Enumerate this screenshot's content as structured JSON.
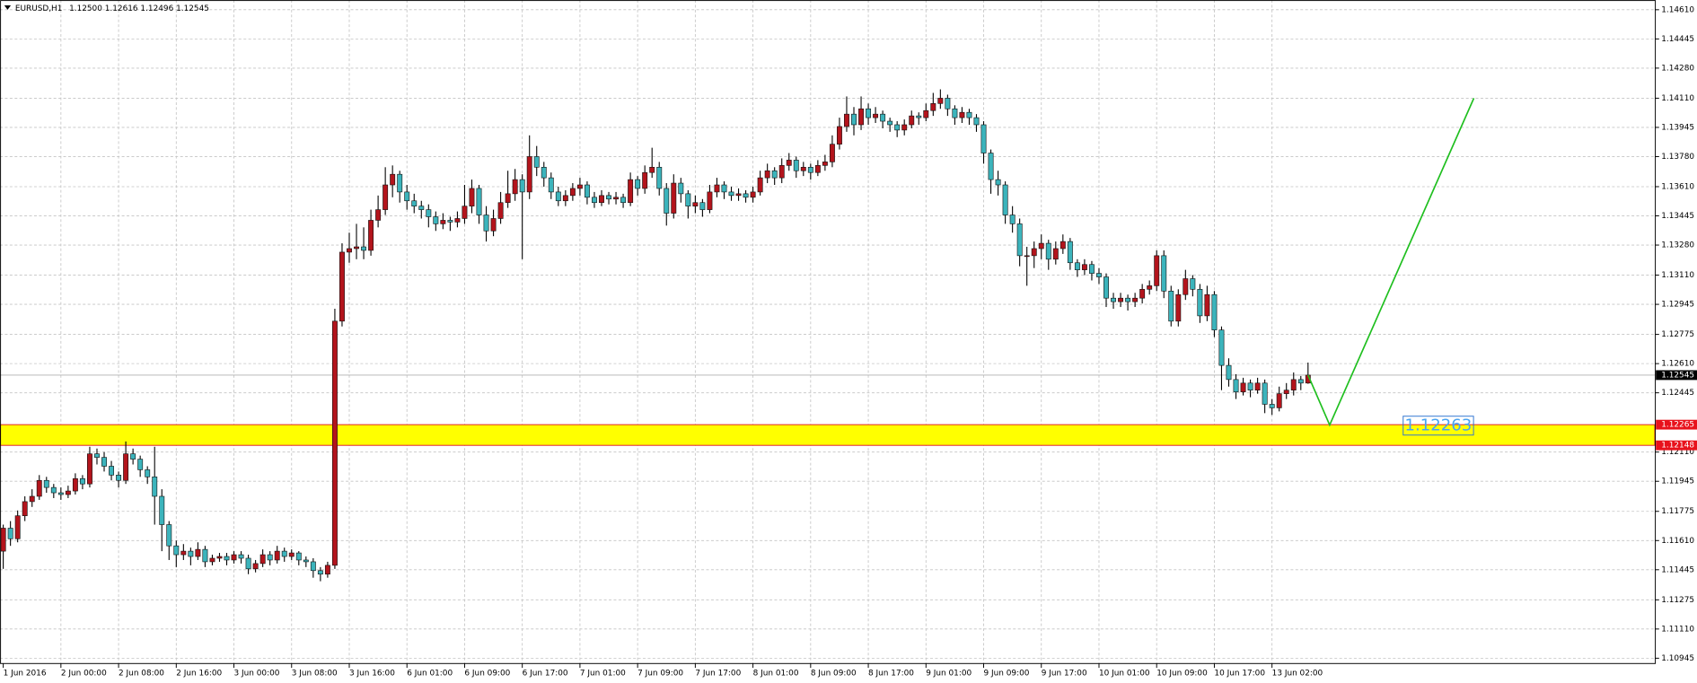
{
  "chart_data": {
    "type": "candlestick",
    "title": "EURUSD,H1",
    "ohlc_labels": [
      "1.12500",
      "1.12616",
      "1.12496",
      "1.12545"
    ],
    "up_color": "#b3141c",
    "down_color": "#3cb4bc",
    "grid": true,
    "xlim": [
      -0.45,
      229.1
    ],
    "ylim": [
      1.10915,
      1.14665
    ],
    "xticks": [
      {
        "value": 0,
        "label": "1 Jun 2016"
      },
      {
        "value": 8,
        "label": "2 Jun 00:00"
      },
      {
        "value": 16,
        "label": "2 Jun 08:00"
      },
      {
        "value": 24,
        "label": "2 Jun 16:00"
      },
      {
        "value": 32,
        "label": "3 Jun 00:00"
      },
      {
        "value": 40,
        "label": "3 Jun 08:00"
      },
      {
        "value": 48,
        "label": "3 Jun 16:00"
      },
      {
        "value": 56,
        "label": "6 Jun 01:00"
      },
      {
        "value": 64,
        "label": "6 Jun 09:00"
      },
      {
        "value": 72,
        "label": "6 Jun 17:00"
      },
      {
        "value": 80,
        "label": "7 Jun 01:00"
      },
      {
        "value": 88,
        "label": "7 Jun 09:00"
      },
      {
        "value": 96,
        "label": "7 Jun 17:00"
      },
      {
        "value": 104,
        "label": "8 Jun 01:00"
      },
      {
        "value": 112,
        "label": "8 Jun 09:00"
      },
      {
        "value": 120,
        "label": "8 Jun 17:00"
      },
      {
        "value": 128,
        "label": "9 Jun 01:00"
      },
      {
        "value": 136,
        "label": "9 Jun 09:00"
      },
      {
        "value": 144,
        "label": "9 Jun 17:00"
      },
      {
        "value": 152,
        "label": "10 Jun 01:00"
      },
      {
        "value": 160,
        "label": "10 Jun 09:00"
      },
      {
        "value": 168,
        "label": "10 Jun 17:00"
      },
      {
        "value": 176,
        "label": "13 Jun 02:00"
      }
    ],
    "yticks": [
      {
        "value": 1.1461,
        "label": "1.14610"
      },
      {
        "value": 1.14445,
        "label": "1.14445"
      },
      {
        "value": 1.1428,
        "label": "1.14280"
      },
      {
        "value": 1.1411,
        "label": "1.14110"
      },
      {
        "value": 1.13945,
        "label": "1.13945"
      },
      {
        "value": 1.1378,
        "label": "1.13780"
      },
      {
        "value": 1.1361,
        "label": "1.13610"
      },
      {
        "value": 1.13445,
        "label": "1.13445"
      },
      {
        "value": 1.1328,
        "label": "1.13280"
      },
      {
        "value": 1.1311,
        "label": "1.13110"
      },
      {
        "value": 1.12945,
        "label": "1.12945"
      },
      {
        "value": 1.12775,
        "label": "1.12775"
      },
      {
        "value": 1.1261,
        "label": "1.12610"
      },
      {
        "value": 1.12445,
        "label": "1.12445"
      },
      {
        "value": 1.1211,
        "label": "1.12110"
      },
      {
        "value": 1.11945,
        "label": "1.11945"
      },
      {
        "value": 1.11775,
        "label": "1.11775"
      },
      {
        "value": 1.1161,
        "label": "1.11610"
      },
      {
        "value": 1.11445,
        "label": "1.11445"
      },
      {
        "value": 1.11275,
        "label": "1.11275"
      },
      {
        "value": 1.1111,
        "label": "1.11110"
      },
      {
        "value": 1.10945,
        "label": "1.10945"
      }
    ],
    "open": [
      1.1155,
      1.1168,
      1.1162,
      1.1175,
      1.1183,
      1.1186,
      1.1195,
      1.1191,
      1.1188,
      1.1187,
      1.1189,
      1.1196,
      1.1193,
      1.121,
      1.1208,
      1.1203,
      1.1198,
      1.1195,
      1.121,
      1.1207,
      1.1201,
      1.1197,
      1.1186,
      1.117,
      1.1158,
      1.1153,
      1.1155,
      1.1152,
      1.1156,
      1.1149,
      1.1151,
      1.1152,
      1.115,
      1.1153,
      1.1151,
      1.1145,
      1.1148,
      1.1153,
      1.115,
      1.1155,
      1.1152,
      1.1154,
      1.115,
      1.1149,
      1.1144,
      1.1142,
      1.1147,
      1.1285,
      1.1324,
      1.1326,
      1.1327,
      1.1325,
      1.1342,
      1.1348,
      1.1362,
      1.1368,
      1.1358,
      1.1353,
      1.135,
      1.1348,
      1.1344,
      1.134,
      1.1342,
      1.1341,
      1.1343,
      1.135,
      1.136,
      1.1345,
      1.1336,
      1.1343,
      1.1352,
      1.1357,
      1.1365,
      1.1358,
      1.1378,
      1.1372,
      1.1366,
      1.1358,
      1.1353,
      1.1356,
      1.136,
      1.1362,
      1.1355,
      1.1352,
      1.1356,
      1.1354,
      1.1355,
      1.1352,
      1.1365,
      1.136,
      1.1369,
      1.1372,
      1.136,
      1.1346,
      1.1363,
      1.1357,
      1.135,
      1.1352,
      1.1348,
      1.1358,
      1.1362,
      1.1358,
      1.1356,
      1.1357,
      1.1355,
      1.1358,
      1.1366,
      1.137,
      1.1366,
      1.1373,
      1.1376,
      1.137,
      1.1372,
      1.1369,
      1.1373,
      1.1375,
      1.1385,
      1.1395,
      1.1402,
      1.1396,
      1.1405,
      1.14,
      1.1402,
      1.1398,
      1.1396,
      1.1393,
      1.1396,
      1.1401,
      1.14,
      1.1404,
      1.1408,
      1.1411,
      1.1405,
      1.14,
      1.1403,
      1.14,
      1.1396,
      1.138,
      1.1365,
      1.1362,
      1.1345,
      1.134,
      1.1322,
      1.1322,
      1.1326,
      1.1329,
      1.132,
      1.1326,
      1.133,
      1.1318,
      1.1314,
      1.1317,
      1.1312,
      1.131,
      1.1298,
      1.1296,
      1.1298,
      1.1296,
      1.1298,
      1.1303,
      1.1305,
      1.1322,
      1.1302,
      1.1285,
      1.13,
      1.1309,
      1.1303,
      1.1288,
      1.13,
      1.128,
      1.126,
      1.1252,
      1.1245,
      1.125,
      1.1246,
      1.125,
      1.1238,
      1.1236,
      1.1244,
      1.1246,
      1.1252,
      1.125
    ],
    "high": [
      1.117,
      1.1172,
      1.1178,
      1.1186,
      1.119,
      1.1198,
      1.1197,
      1.1193,
      1.1191,
      1.1192,
      1.1199,
      1.1198,
      1.1214,
      1.1213,
      1.1211,
      1.1206,
      1.12,
      1.1217,
      1.1213,
      1.1209,
      1.1203,
      1.1214,
      1.119,
      1.1172,
      1.1161,
      1.1159,
      1.1157,
      1.116,
      1.1158,
      1.1153,
      1.1154,
      1.1154,
      1.1155,
      1.1155,
      1.1153,
      1.115,
      1.1156,
      1.1155,
      1.1158,
      1.1157,
      1.1156,
      1.1155,
      1.1152,
      1.1151,
      1.1146,
      1.1149,
      1.1292,
      1.1329,
      1.1335,
      1.134,
      1.1338,
      1.1348,
      1.1356,
      1.1372,
      1.1373,
      1.137,
      1.1362,
      1.1357,
      1.1353,
      1.1351,
      1.1347,
      1.1346,
      1.1344,
      1.1347,
      1.1362,
      1.1365,
      1.1362,
      1.135,
      1.1348,
      1.1358,
      1.137,
      1.1371,
      1.1368,
      1.139,
      1.1384,
      1.1375,
      1.1369,
      1.1361,
      1.1359,
      1.1363,
      1.1366,
      1.1364,
      1.1358,
      1.1359,
      1.1358,
      1.1358,
      1.1357,
      1.1369,
      1.1367,
      1.1373,
      1.1383,
      1.1375,
      1.1363,
      1.1368,
      1.1366,
      1.1359,
      1.1356,
      1.1354,
      1.1362,
      1.1366,
      1.1364,
      1.1361,
      1.136,
      1.1359,
      1.1361,
      1.137,
      1.1374,
      1.1372,
      1.1377,
      1.138,
      1.1378,
      1.1375,
      1.1374,
      1.1376,
      1.1379,
      1.139,
      1.14,
      1.1412,
      1.1406,
      1.1412,
      1.1408,
      1.1406,
      1.1404,
      1.14,
      1.1398,
      1.1399,
      1.1404,
      1.1403,
      1.1408,
      1.1414,
      1.1416,
      1.1413,
      1.1407,
      1.1406,
      1.1405,
      1.1402,
      1.1398,
      1.1382,
      1.137,
      1.1364,
      1.135,
      1.1343,
      1.1327,
      1.133,
      1.1334,
      1.1331,
      1.133,
      1.1334,
      1.1332,
      1.132,
      1.132,
      1.1319,
      1.1315,
      1.1312,
      1.1301,
      1.1301,
      1.13,
      1.1301,
      1.1306,
      1.1308,
      1.1325,
      1.1325,
      1.1305,
      1.1303,
      1.1314,
      1.1311,
      1.1306,
      1.1305,
      1.1302,
      1.1282,
      1.1264,
      1.1255,
      1.1253,
      1.1252,
      1.1253,
      1.1252,
      1.1241,
      1.1248,
      1.125,
      1.1256,
      1.1254,
      1.12616
    ],
    "low": [
      1.1145,
      1.1158,
      1.116,
      1.1172,
      1.118,
      1.1184,
      1.1188,
      1.1185,
      1.1184,
      1.1185,
      1.1187,
      1.119,
      1.1191,
      1.1204,
      1.12,
      1.1195,
      1.1191,
      1.1193,
      1.1204,
      1.1197,
      1.1193,
      1.117,
      1.1155,
      1.115,
      1.1146,
      1.115,
      1.1147,
      1.115,
      1.1146,
      1.1147,
      1.1149,
      1.1147,
      1.1148,
      1.1148,
      1.1142,
      1.1143,
      1.1146,
      1.1147,
      1.1148,
      1.1149,
      1.115,
      1.1147,
      1.1146,
      1.114,
      1.1138,
      1.114,
      1.1145,
      1.1282,
      1.1318,
      1.132,
      1.132,
      1.1322,
      1.1338,
      1.1345,
      1.1355,
      1.1352,
      1.1348,
      1.1346,
      1.1343,
      1.1338,
      1.1336,
      1.1337,
      1.1336,
      1.1338,
      1.134,
      1.1346,
      1.134,
      1.133,
      1.1333,
      1.134,
      1.1349,
      1.1353,
      1.132,
      1.1354,
      1.1367,
      1.1361,
      1.1354,
      1.135,
      1.135,
      1.1353,
      1.1356,
      1.1351,
      1.1349,
      1.135,
      1.1351,
      1.1351,
      1.1349,
      1.135,
      1.1356,
      1.1357,
      1.1366,
      1.1356,
      1.1339,
      1.1343,
      1.1352,
      1.1343,
      1.1346,
      1.1344,
      1.1346,
      1.1355,
      1.1354,
      1.1353,
      1.1353,
      1.1352,
      1.1352,
      1.1356,
      1.1363,
      1.1362,
      1.1363,
      1.137,
      1.1366,
      1.1367,
      1.1365,
      1.1367,
      1.137,
      1.1372,
      1.1382,
      1.1392,
      1.139,
      1.1393,
      1.1396,
      1.1397,
      1.1394,
      1.1392,
      1.1389,
      1.139,
      1.1394,
      1.1396,
      1.1398,
      1.1401,
      1.1405,
      1.1401,
      1.1396,
      1.1397,
      1.1396,
      1.1392,
      1.1374,
      1.1357,
      1.1356,
      1.134,
      1.1335,
      1.1316,
      1.1305,
      1.1315,
      1.132,
      1.1314,
      1.1317,
      1.1323,
      1.1314,
      1.131,
      1.1311,
      1.1308,
      1.1306,
      1.1293,
      1.1292,
      1.1293,
      1.1291,
      1.1293,
      1.1295,
      1.13,
      1.1302,
      1.1298,
      1.1282,
      1.1282,
      1.1297,
      1.1299,
      1.1284,
      1.1285,
      1.1276,
      1.1246,
      1.1248,
      1.1241,
      1.1243,
      1.1242,
      1.1244,
      1.1233,
      1.1232,
      1.1234,
      1.1241,
      1.1243,
      1.1246,
      1.12496
    ],
    "close": [
      1.1168,
      1.1162,
      1.1175,
      1.1183,
      1.1186,
      1.1195,
      1.1191,
      1.1188,
      1.1187,
      1.1189,
      1.1196,
      1.1193,
      1.121,
      1.1208,
      1.1203,
      1.1198,
      1.1195,
      1.121,
      1.1207,
      1.1201,
      1.1197,
      1.1186,
      1.117,
      1.1158,
      1.1153,
      1.1155,
      1.1152,
      1.1156,
      1.1149,
      1.1151,
      1.1152,
      1.115,
      1.1153,
      1.1151,
      1.1145,
      1.1148,
      1.1153,
      1.115,
      1.1155,
      1.1152,
      1.1154,
      1.115,
      1.1149,
      1.1144,
      1.1142,
      1.1147,
      1.1285,
      1.1324,
      1.1326,
      1.1327,
      1.1325,
      1.1342,
      1.1348,
      1.1362,
      1.1368,
      1.1358,
      1.1353,
      1.135,
      1.1348,
      1.1344,
      1.134,
      1.1342,
      1.1341,
      1.1343,
      1.135,
      1.136,
      1.1345,
      1.1336,
      1.1343,
      1.1352,
      1.1357,
      1.1365,
      1.1358,
      1.1378,
      1.1372,
      1.1366,
      1.1358,
      1.1353,
      1.1356,
      1.136,
      1.1362,
      1.1355,
      1.1352,
      1.1356,
      1.1354,
      1.1355,
      1.1352,
      1.1365,
      1.136,
      1.1369,
      1.1372,
      1.136,
      1.1346,
      1.1363,
      1.1357,
      1.135,
      1.1352,
      1.1348,
      1.1358,
      1.1362,
      1.1358,
      1.1356,
      1.1357,
      1.1355,
      1.1358,
      1.1366,
      1.137,
      1.1366,
      1.1373,
      1.1376,
      1.137,
      1.1372,
      1.1369,
      1.1373,
      1.1375,
      1.1385,
      1.1395,
      1.1402,
      1.1396,
      1.1405,
      1.14,
      1.1402,
      1.1398,
      1.1396,
      1.1393,
      1.1396,
      1.1401,
      1.14,
      1.1404,
      1.1408,
      1.1411,
      1.1405,
      1.14,
      1.1403,
      1.14,
      1.1396,
      1.138,
      1.1365,
      1.1362,
      1.1345,
      1.134,
      1.1322,
      1.1322,
      1.1326,
      1.1329,
      1.132,
      1.1326,
      1.133,
      1.1318,
      1.1314,
      1.1317,
      1.1312,
      1.131,
      1.1298,
      1.1296,
      1.1298,
      1.1296,
      1.1298,
      1.1303,
      1.1305,
      1.1322,
      1.1302,
      1.1285,
      1.13,
      1.1309,
      1.1303,
      1.1288,
      1.13,
      1.128,
      1.126,
      1.1252,
      1.1245,
      1.125,
      1.1246,
      1.125,
      1.1238,
      1.1236,
      1.1244,
      1.1246,
      1.1252,
      1.125,
      1.12545
    ],
    "price_line": {
      "value": 1.12545,
      "label": "1.12545"
    },
    "zone": {
      "top": {
        "value": 1.12265,
        "label": "1.12265"
      },
      "bottom": {
        "value": 1.12148,
        "label": "1.12148"
      },
      "color": "#ffff00"
    },
    "projection": {
      "x": [
        181,
        184,
        204
      ],
      "values": [
        1.12545,
        1.12263,
        1.1411
      ],
      "color": "#1fbf1f"
    },
    "annotation": {
      "value": 1.12263,
      "label": "1.12263"
    }
  }
}
